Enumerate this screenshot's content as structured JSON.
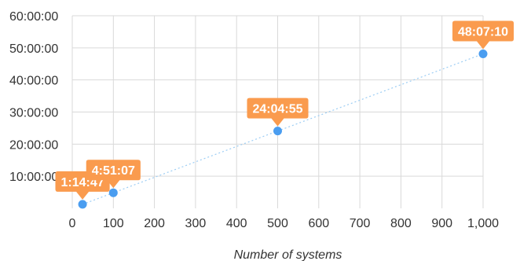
{
  "chart_data": {
    "type": "scatter",
    "title": "",
    "xlabel": "Number of systems",
    "ylabel": "",
    "xlim": [
      0,
      1000
    ],
    "ylim": [
      0,
      60
    ],
    "x_unit": "systems",
    "y_unit": "hours",
    "x_ticks": [
      0,
      100,
      200,
      300,
      400,
      500,
      600,
      700,
      800,
      900,
      1000
    ],
    "x_tick_labels": [
      "0",
      "100",
      "200",
      "300",
      "400",
      "500",
      "600",
      "700",
      "800",
      "900",
      "1,000"
    ],
    "y_ticks": [
      10,
      20,
      30,
      40,
      50,
      60
    ],
    "y_tick_labels": [
      "10:00:00",
      "20:00:00",
      "30:00:00",
      "40:00:00",
      "50:00:00",
      "60:00:00"
    ],
    "grid": true,
    "legend": "none",
    "series": [
      {
        "points": [
          {
            "x": 25,
            "y": 1.246,
            "label": "1:14:47"
          },
          {
            "x": 100,
            "y": 4.852,
            "label": "4:51:07"
          },
          {
            "x": 500,
            "y": 24.082,
            "label": "24:04:55"
          },
          {
            "x": 1000,
            "y": 48.119,
            "label": "48:07:10"
          }
        ]
      }
    ],
    "colors": {
      "point": "#4a9df0",
      "trendline": "#9ccdf4",
      "callout": "#fa9b4e",
      "callout_text": "#ffffff",
      "grid": "#d9d9d9",
      "text": "#333333"
    }
  }
}
